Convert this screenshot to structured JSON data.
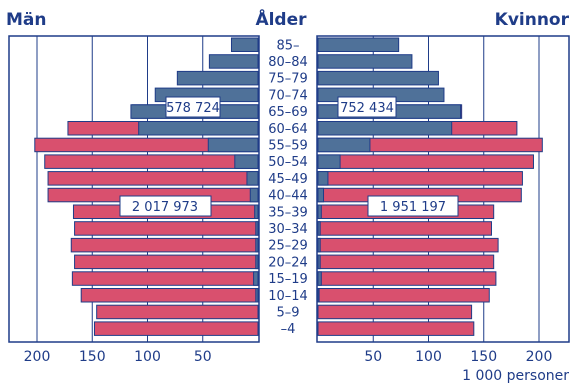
{
  "chart_data": {
    "type": "bar",
    "orientation": "horizontal-population-pyramid",
    "title_left": "Män",
    "title_center": "Ålder",
    "title_right": "Kvinnor",
    "unit_label": "1 000 personer",
    "age_groups": [
      "85–",
      "80–84",
      "75–79",
      "70–74",
      "65–69",
      "60–64",
      "55–59",
      "50–54",
      "45–49",
      "40–44",
      "35–39",
      "30–34",
      "25–29",
      "20–24",
      "15–19",
      "10–14",
      "5–9",
      "–4"
    ],
    "xlim": [
      0,
      210
    ],
    "ticks_left": [
      200,
      150,
      100,
      50
    ],
    "ticks_right": [
      50,
      100,
      150,
      200
    ],
    "colors": {
      "total": "#d9506e",
      "highlight": "#4f7199",
      "frame": "#1f3c88"
    },
    "series": [
      {
        "side": "men",
        "total": [
          0,
          0,
          0,
          0,
          114,
          172,
          202,
          193,
          190,
          190,
          167,
          166,
          169,
          166,
          168,
          160,
          146,
          148
        ],
        "highlight": [
          24,
          44,
          73,
          93,
          115,
          108,
          45,
          21,
          10,
          7,
          3,
          2,
          2,
          2,
          4,
          2,
          0,
          0
        ]
      },
      {
        "side": "women",
        "total": [
          0,
          0,
          0,
          0,
          130,
          180,
          203,
          195,
          185,
          184,
          159,
          157,
          163,
          159,
          161,
          155,
          139,
          141
        ],
        "highlight": [
          73,
          85,
          109,
          114,
          129,
          121,
          47,
          20,
          9,
          5,
          3,
          2,
          2,
          2,
          3,
          1,
          0,
          0
        ]
      }
    ],
    "annotations": [
      {
        "side": "men",
        "text": "578 724"
      },
      {
        "side": "women",
        "text": "752 434"
      },
      {
        "side": "men",
        "text": "2 017 973"
      },
      {
        "side": "women",
        "text": "1 951 197"
      }
    ]
  }
}
